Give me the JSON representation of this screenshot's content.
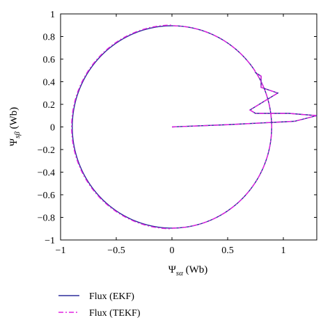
{
  "chart_data": {
    "type": "line",
    "title": "",
    "xlabel": "Ψ_sα (Wb)",
    "ylabel": "Ψ_sβ (Wb)",
    "xlabel_main": "Ψ",
    "xlabel_sub": "sα",
    "xlabel_unit": " (Wb)",
    "ylabel_main": "Ψ",
    "ylabel_sub": "sβ",
    "ylabel_unit": " (Wb)",
    "xlim": [
      -1,
      1.3
    ],
    "ylim": [
      -1,
      1
    ],
    "xticks": [
      -1,
      -0.5,
      0,
      0.5,
      1
    ],
    "xtick_labels": [
      "−1",
      "−0.5",
      "0",
      "0.5",
      "1"
    ],
    "yticks": [
      -1,
      -0.8,
      -0.6,
      -0.4,
      -0.2,
      0,
      0.2,
      0.4,
      0.6,
      0.8,
      1
    ],
    "ytick_labels": [
      "−1",
      "−0.8",
      "−0.6",
      "−0.4",
      "−0.2",
      "0",
      "0.2",
      "0.4",
      "0.6",
      "0.8",
      "1"
    ],
    "grid": false,
    "legend_position": "bottom-left",
    "series": [
      {
        "name": "Flux (EKF)",
        "color": "#2b2b9a",
        "style": "solid",
        "circle_radius": 0.895,
        "transient": [
          [
            0,
            0
          ],
          [
            0.5,
            0.02
          ],
          [
            1.1,
            0.05
          ],
          [
            1.3,
            0.1
          ],
          [
            1.05,
            0.12
          ],
          [
            0.75,
            0.12
          ],
          [
            0.7,
            0.15
          ],
          [
            0.95,
            0.3
          ],
          [
            0.8,
            0.35
          ],
          [
            0.8,
            0.45
          ],
          [
            0.75,
            0.48
          ]
        ]
      },
      {
        "name": "Flux (TEKF)",
        "color": "#e020e0",
        "style": "dash-dot",
        "circle_radius": 0.895,
        "transient": [
          [
            0,
            0
          ],
          [
            0.5,
            0.02
          ],
          [
            1.1,
            0.05
          ],
          [
            1.3,
            0.1
          ],
          [
            1.05,
            0.12
          ],
          [
            0.75,
            0.12
          ],
          [
            0.7,
            0.15
          ],
          [
            0.95,
            0.3
          ],
          [
            0.8,
            0.35
          ],
          [
            0.8,
            0.45
          ],
          [
            0.75,
            0.48
          ]
        ]
      }
    ]
  }
}
